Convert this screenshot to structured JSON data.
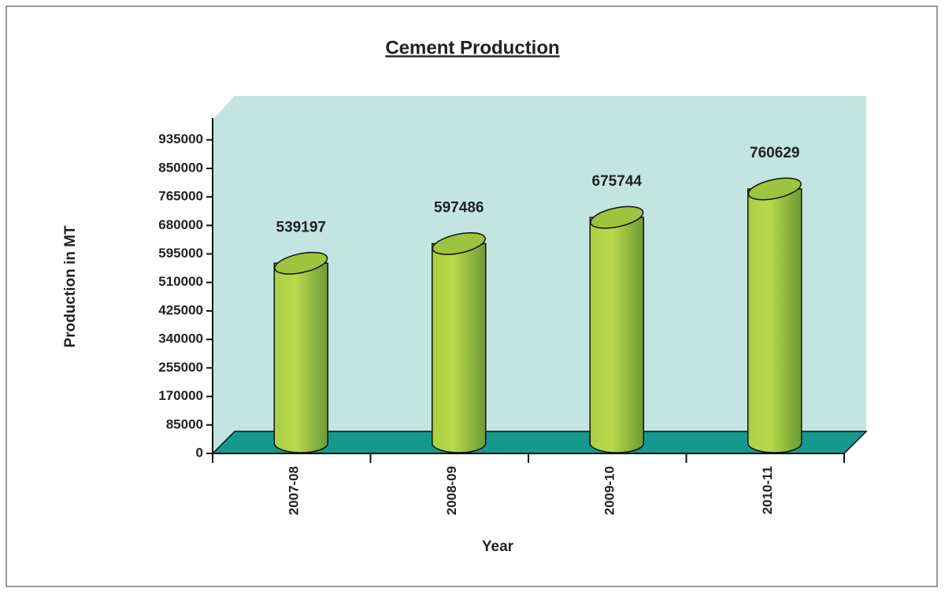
{
  "chart_data": {
    "type": "bar",
    "title": "Cement Production",
    "x_label": "Year",
    "y_label": "Production in MT",
    "categories": [
      "2007-08",
      "2008-09",
      "2009-10",
      "2010-11"
    ],
    "values": [
      539197,
      597486,
      675744,
      760629
    ],
    "color": "#9cc43e",
    "ylim": [
      0,
      1000000
    ],
    "yticks": [
      0,
      85000,
      170000,
      255000,
      340000,
      425000,
      510000,
      595000,
      680000,
      765000,
      850000,
      935000
    ]
  }
}
